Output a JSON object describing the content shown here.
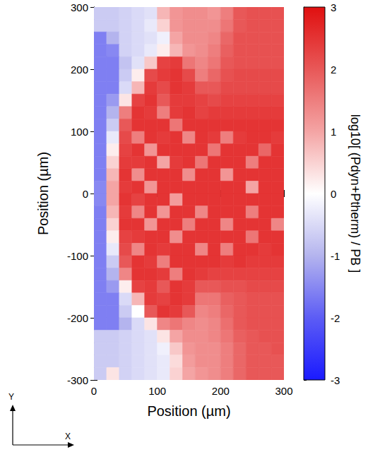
{
  "chart_data": {
    "type": "heatmap",
    "xlabel": "Position (µm)",
    "ylabel": "Position (µm)",
    "xlim": [
      0,
      300
    ],
    "ylim": [
      -300,
      300
    ],
    "xticks": [
      0,
      100,
      200,
      300
    ],
    "yticks": [
      -300,
      -200,
      -100,
      0,
      100,
      200,
      300
    ],
    "x_edges": [
      0,
      20,
      40,
      60,
      80,
      100,
      120,
      140,
      160,
      180,
      200,
      220,
      240,
      260,
      280,
      300
    ],
    "y_edges": [
      300,
      280,
      260,
      240,
      220,
      200,
      180,
      160,
      140,
      120,
      100,
      80,
      60,
      40,
      20,
      0,
      -20,
      -40,
      -60,
      -80,
      -100,
      -120,
      -140,
      -160,
      -180,
      -200,
      -220,
      -240,
      -260,
      -280,
      -300
    ],
    "cells": [
      [
        -0.7,
        -0.7,
        -0.6,
        -0.5,
        -0.4,
        0.8,
        1.2,
        1.3,
        1.3,
        1.2,
        1.5,
        2.0,
        2.1,
        2.1,
        2.1
      ],
      [
        -0.7,
        -0.7,
        -0.6,
        -0.5,
        -0.3,
        0.5,
        1.2,
        1.3,
        1.3,
        1.3,
        1.6,
        2.0,
        2.1,
        2.1,
        2.1
      ],
      [
        -1.6,
        -1.0,
        -0.6,
        -0.5,
        -0.4,
        -0.2,
        1.0,
        1.3,
        1.3,
        1.4,
        1.8,
        2.1,
        2.1,
        2.1,
        2.1
      ],
      [
        -1.6,
        -1.5,
        -0.6,
        -0.5,
        -0.3,
        0.2,
        0.8,
        1.2,
        1.3,
        1.5,
        1.9,
        2.1,
        2.1,
        2.1,
        2.1
      ],
      [
        -1.6,
        -1.6,
        -0.8,
        -0.4,
        0.6,
        2.3,
        2.4,
        1.6,
        1.4,
        1.6,
        2.0,
        2.1,
        2.1,
        2.1,
        2.1
      ],
      [
        -1.6,
        -1.6,
        -0.7,
        0.2,
        2.2,
        2.4,
        2.5,
        2.2,
        1.5,
        1.8,
        2.1,
        2.2,
        2.2,
        2.2,
        2.2
      ],
      [
        -1.6,
        -1.6,
        -0.5,
        0.8,
        2.4,
        2.2,
        2.5,
        2.4,
        2.0,
        2.0,
        2.2,
        2.2,
        2.2,
        2.2,
        2.2
      ],
      [
        -1.6,
        -1.3,
        0.3,
        2.3,
        2.5,
        2.0,
        2.4,
        2.4,
        2.3,
        2.2,
        2.3,
        2.3,
        2.3,
        2.3,
        2.3
      ],
      [
        -1.6,
        -1.0,
        1.5,
        2.5,
        2.4,
        1.5,
        2.4,
        2.5,
        2.3,
        2.4,
        2.4,
        2.4,
        2.4,
        2.4,
        2.4
      ],
      [
        -1.6,
        -0.7,
        2.0,
        2.5,
        2.5,
        2.5,
        1.6,
        2.5,
        2.5,
        2.5,
        2.5,
        2.5,
        2.5,
        2.5,
        2.5
      ],
      [
        -1.6,
        -0.3,
        2.2,
        1.5,
        2.5,
        2.4,
        2.5,
        1.4,
        2.5,
        2.4,
        1.5,
        2.4,
        2.5,
        2.5,
        2.4
      ],
      [
        -1.6,
        0.2,
        2.3,
        2.5,
        1.2,
        2.5,
        2.5,
        2.5,
        2.5,
        1.6,
        2.5,
        2.5,
        2.5,
        1.8,
        2.5
      ],
      [
        -1.6,
        0.5,
        2.4,
        2.4,
        2.5,
        1.0,
        2.4,
        2.5,
        1.6,
        2.5,
        2.5,
        2.5,
        1.5,
        2.5,
        2.5
      ],
      [
        -1.6,
        0.8,
        2.5,
        1.3,
        2.5,
        2.5,
        2.5,
        1.3,
        2.5,
        2.5,
        1.2,
        2.5,
        2.5,
        2.5,
        2.5
      ],
      [
        -1.5,
        1.0,
        2.4,
        2.5,
        1.2,
        2.5,
        2.5,
        2.5,
        2.5,
        2.5,
        2.5,
        2.5,
        1.0,
        2.5,
        2.5
      ],
      [
        -1.5,
        1.0,
        2.5,
        2.3,
        2.5,
        2.5,
        1.1,
        2.5,
        2.5,
        2.5,
        2.5,
        2.5,
        2.5,
        2.5,
        2.5
      ],
      [
        -1.6,
        0.8,
        2.4,
        1.4,
        2.5,
        1.2,
        2.5,
        2.5,
        1.4,
        2.5,
        2.5,
        2.5,
        1.5,
        2.5,
        2.5
      ],
      [
        -1.6,
        0.5,
        2.5,
        2.5,
        1.2,
        2.5,
        2.5,
        1.5,
        2.5,
        2.5,
        1.4,
        2.5,
        2.5,
        2.5,
        1.4
      ],
      [
        -1.6,
        0.2,
        2.3,
        2.4,
        2.5,
        2.5,
        1.3,
        2.5,
        2.5,
        2.5,
        2.5,
        2.5,
        1.6,
        2.5,
        2.5
      ],
      [
        -1.6,
        -0.3,
        2.2,
        1.4,
        2.5,
        2.4,
        2.5,
        2.5,
        1.4,
        2.5,
        1.5,
        2.5,
        2.5,
        2.4,
        2.5
      ],
      [
        -1.6,
        -0.7,
        2.0,
        2.5,
        2.4,
        1.5,
        2.5,
        2.5,
        2.5,
        2.5,
        2.4,
        2.5,
        2.4,
        2.4,
        2.4
      ],
      [
        -1.6,
        -1.0,
        1.4,
        2.5,
        2.5,
        2.4,
        1.5,
        2.5,
        2.4,
        2.3,
        2.3,
        2.3,
        2.3,
        2.3,
        2.3
      ],
      [
        -1.6,
        -1.3,
        0.2,
        2.3,
        2.4,
        2.0,
        2.5,
        2.4,
        2.0,
        2.0,
        2.1,
        2.1,
        2.2,
        2.2,
        2.2
      ],
      [
        -1.6,
        -1.6,
        -0.5,
        0.8,
        2.4,
        2.3,
        2.5,
        2.4,
        1.6,
        1.6,
        1.9,
        2.0,
        2.1,
        2.1,
        2.1
      ],
      [
        -1.6,
        -1.6,
        -0.7,
        0.0,
        2.0,
        2.5,
        2.4,
        2.0,
        1.4,
        1.5,
        1.8,
        2.0,
        2.1,
        2.1,
        2.1
      ],
      [
        -1.6,
        -1.6,
        -1.0,
        -0.5,
        0.3,
        1.4,
        1.6,
        1.4,
        1.3,
        1.4,
        1.7,
        2.0,
        2.1,
        2.1,
        2.1
      ],
      [
        -0.7,
        -0.7,
        -0.6,
        -0.5,
        -0.4,
        0.3,
        1.0,
        1.3,
        1.3,
        1.4,
        1.6,
        1.9,
        2.0,
        2.1,
        2.1
      ],
      [
        -0.7,
        -0.7,
        -0.6,
        -0.5,
        -0.4,
        -0.2,
        0.6,
        1.2,
        1.3,
        1.3,
        1.5,
        1.8,
        2.0,
        2.0,
        2.1
      ],
      [
        -0.7,
        -0.7,
        -0.6,
        -0.5,
        -0.4,
        -0.3,
        0.4,
        1.1,
        1.3,
        1.3,
        1.5,
        1.8,
        2.0,
        2.0,
        2.0
      ],
      [
        -0.7,
        0.3,
        -0.6,
        -0.5,
        -0.4,
        -0.3,
        0.5,
        1.0,
        1.2,
        1.3,
        1.5,
        1.8,
        2.0,
        2.0,
        2.0
      ]
    ],
    "colorbar": {
      "label": "log10[ (Pdyn+Ptherm) / PB ]",
      "range": [
        -3,
        3
      ],
      "ticks": [
        -3,
        -2,
        -1,
        0,
        1,
        2,
        3
      ]
    },
    "direction_labels": {
      "x": "X",
      "y": "Y"
    }
  }
}
